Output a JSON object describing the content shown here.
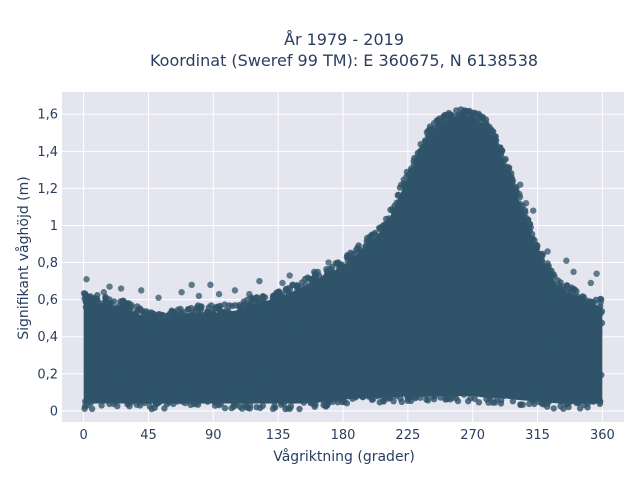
{
  "chart_data": {
    "type": "scatter",
    "title_lines": [
      "År 1979 - 2019",
      "Koordinat (Sweref 99 TM): E 360675, N 6138538"
    ],
    "xlabel": "Vågriktning (grader)",
    "ylabel": "Signifikant våghöjd (m)",
    "xlim": [
      -15,
      375
    ],
    "ylim": [
      -0.06,
      1.72
    ],
    "xticks": [
      0,
      45,
      90,
      135,
      180,
      225,
      270,
      315,
      360
    ],
    "xtick_labels": [
      "0",
      "45",
      "90",
      "135",
      "180",
      "225",
      "270",
      "315",
      "360"
    ],
    "yticks": [
      0,
      0.2,
      0.4,
      0.6,
      0.8,
      1.0,
      1.2,
      1.4,
      1.6
    ],
    "ytick_labels": [
      "0",
      "0,2",
      "0,4",
      "0,6",
      "0,8",
      "1",
      "1,2",
      "1,4",
      "1,6"
    ],
    "grid": true,
    "colors": {
      "plot_bg": "#e5e5f0",
      "marker": "#2f5469",
      "text": "#2a3f5f"
    },
    "series": [
      {
        "name": "",
        "envelope": {
          "x": [
            0,
            15,
            30,
            45,
            60,
            75,
            90,
            105,
            120,
            135,
            150,
            165,
            180,
            195,
            210,
            225,
            240,
            250,
            260,
            270,
            280,
            290,
            300,
            315,
            330,
            345,
            360
          ],
          "y_upper": [
            0.62,
            0.6,
            0.57,
            0.52,
            0.52,
            0.55,
            0.55,
            0.56,
            0.6,
            0.63,
            0.68,
            0.74,
            0.8,
            0.9,
            1.02,
            1.28,
            1.52,
            1.58,
            1.61,
            1.61,
            1.55,
            1.4,
            1.2,
            0.88,
            0.68,
            0.62,
            0.58
          ],
          "y_lower": [
            0.03,
            0.03,
            0.03,
            0.03,
            0.03,
            0.03,
            0.03,
            0.03,
            0.03,
            0.03,
            0.03,
            0.04,
            0.05,
            0.06,
            0.06,
            0.07,
            0.07,
            0.07,
            0.07,
            0.07,
            0.06,
            0.06,
            0.05,
            0.04,
            0.03,
            0.03,
            0.03
          ]
        },
        "outliers": [
          {
            "x": 2,
            "y": 0.71
          },
          {
            "x": 18,
            "y": 0.67
          },
          {
            "x": 26,
            "y": 0.66
          },
          {
            "x": 40,
            "y": 0.65
          },
          {
            "x": 68,
            "y": 0.64
          },
          {
            "x": 75,
            "y": 0.68
          },
          {
            "x": 88,
            "y": 0.68
          },
          {
            "x": 94,
            "y": 0.63
          },
          {
            "x": 105,
            "y": 0.65
          },
          {
            "x": 115,
            "y": 0.63
          },
          {
            "x": 122,
            "y": 0.7
          },
          {
            "x": 138,
            "y": 0.69
          },
          {
            "x": 143,
            "y": 0.73
          },
          {
            "x": 160,
            "y": 0.75
          },
          {
            "x": 170,
            "y": 0.8
          },
          {
            "x": 190,
            "y": 0.88
          },
          {
            "x": 200,
            "y": 0.95
          },
          {
            "x": 303,
            "y": 1.22
          },
          {
            "x": 307,
            "y": 1.12
          },
          {
            "x": 312,
            "y": 1.08
          },
          {
            "x": 322,
            "y": 0.86
          },
          {
            "x": 335,
            "y": 0.81
          },
          {
            "x": 340,
            "y": 0.75
          },
          {
            "x": 356,
            "y": 0.74
          },
          {
            "x": 352,
            "y": 0.69
          },
          {
            "x": 14,
            "y": 0.64
          },
          {
            "x": 52,
            "y": 0.61
          },
          {
            "x": 80,
            "y": 0.62
          }
        ]
      }
    ]
  }
}
